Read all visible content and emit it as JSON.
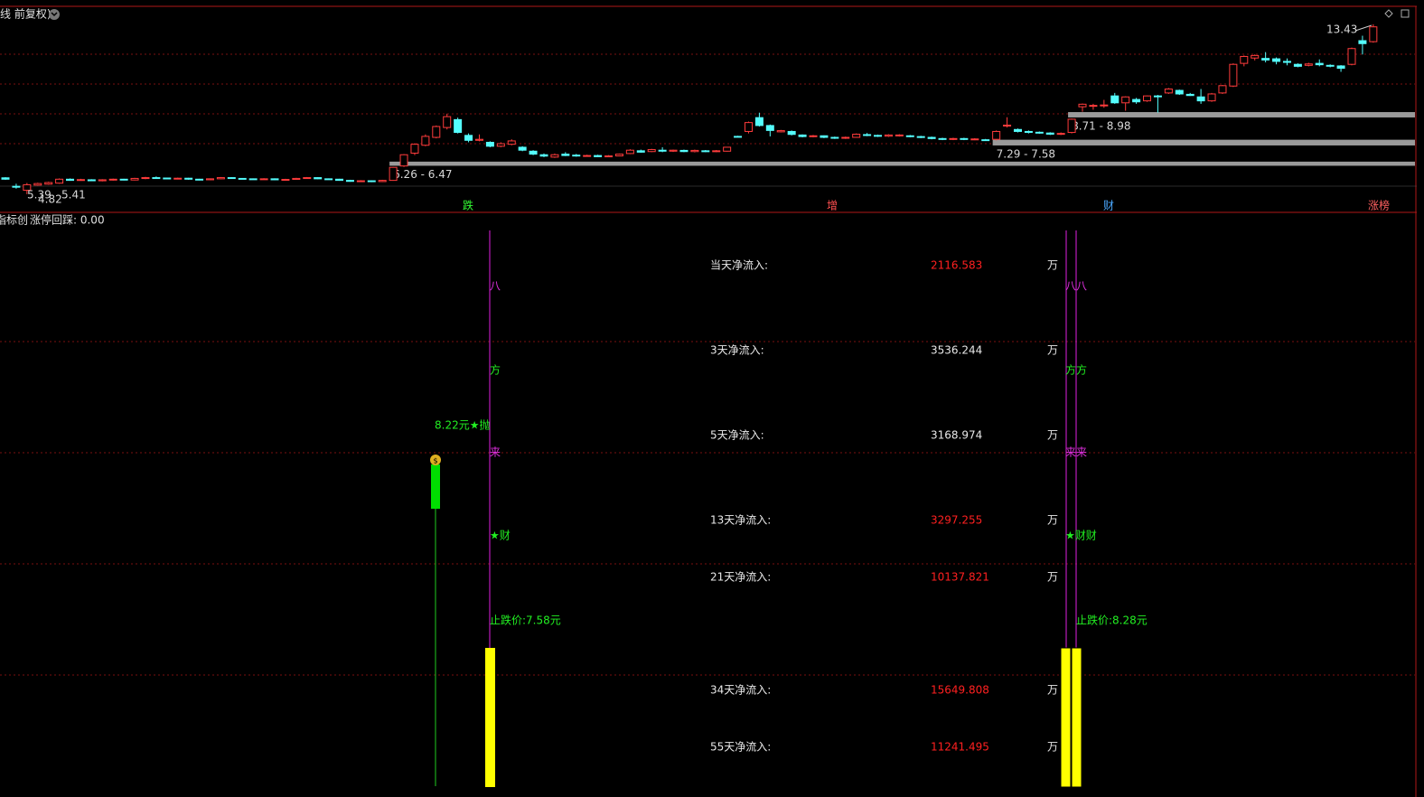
{
  "header": {
    "title": "线 前复权)"
  },
  "kline": {
    "ylim": [
      3.9,
      14.34
    ],
    "up_color": "#ff3c3c",
    "down_color": "#54fcfc",
    "candles": [
      [
        5.65,
        5.58,
        5.68,
        5.55
      ],
      [
        5.22,
        5.18,
        5.35,
        5.1
      ],
      [
        5.02,
        5.3,
        5.39,
        4.82
      ],
      [
        5.28,
        5.36,
        5.4,
        5.25
      ],
      [
        5.33,
        5.41,
        5.45,
        5.3
      ],
      [
        5.38,
        5.58,
        5.62,
        5.35
      ],
      [
        5.58,
        5.52,
        5.62,
        5.5
      ],
      [
        5.52,
        5.56,
        5.6,
        5.5
      ],
      [
        5.55,
        5.5,
        5.58,
        5.48
      ],
      [
        5.5,
        5.55,
        5.58,
        5.47
      ],
      [
        5.54,
        5.58,
        5.61,
        5.51
      ],
      [
        5.58,
        5.54,
        5.6,
        5.52
      ],
      [
        5.54,
        5.62,
        5.65,
        5.52
      ],
      [
        5.62,
        5.66,
        5.7,
        5.58
      ],
      [
        5.66,
        5.64,
        5.72,
        5.61
      ],
      [
        5.64,
        5.6,
        5.66,
        5.58
      ],
      [
        5.6,
        5.63,
        5.66,
        5.57
      ],
      [
        5.63,
        5.58,
        5.65,
        5.55
      ],
      [
        5.58,
        5.55,
        5.6,
        5.52
      ],
      [
        5.55,
        5.6,
        5.62,
        5.53
      ],
      [
        5.6,
        5.66,
        5.69,
        5.58
      ],
      [
        5.66,
        5.62,
        5.68,
        5.6
      ],
      [
        5.62,
        5.6,
        5.64,
        5.57
      ],
      [
        5.6,
        5.58,
        5.62,
        5.56
      ],
      [
        5.58,
        5.6,
        5.63,
        5.55
      ],
      [
        5.6,
        5.55,
        5.62,
        5.53
      ],
      [
        5.55,
        5.57,
        5.6,
        5.52
      ],
      [
        5.57,
        5.62,
        5.65,
        5.55
      ],
      [
        5.62,
        5.66,
        5.69,
        5.6
      ],
      [
        5.66,
        5.6,
        5.68,
        5.58
      ],
      [
        5.6,
        5.58,
        5.62,
        5.55
      ],
      [
        5.58,
        5.52,
        5.6,
        5.5
      ],
      [
        5.52,
        5.47,
        5.55,
        5.45
      ],
      [
        5.47,
        5.5,
        5.53,
        5.44
      ],
      [
        5.5,
        5.46,
        5.52,
        5.43
      ],
      [
        5.46,
        5.52,
        5.55,
        5.44
      ],
      [
        5.52,
        6.18,
        6.2,
        5.5
      ],
      [
        6.25,
        6.82,
        6.85,
        6.2
      ],
      [
        6.9,
        7.35,
        7.4,
        6.8
      ],
      [
        7.3,
        7.75,
        7.85,
        7.25
      ],
      [
        7.7,
        8.25,
        8.3,
        7.65
      ],
      [
        8.2,
        8.75,
        8.9,
        8.1
      ],
      [
        8.6,
        7.95,
        8.7,
        7.9
      ],
      [
        7.8,
        7.55,
        7.9,
        7.45
      ],
      [
        7.55,
        7.6,
        7.85,
        7.5
      ],
      [
        7.45,
        7.25,
        7.5,
        7.2
      ],
      [
        7.25,
        7.38,
        7.45,
        7.2
      ],
      [
        7.35,
        7.52,
        7.6,
        7.3
      ],
      [
        7.2,
        7.05,
        7.25,
        7.0
      ],
      [
        7.0,
        6.85,
        7.05,
        6.8
      ],
      [
        6.82,
        6.75,
        6.88,
        6.7
      ],
      [
        6.7,
        6.82,
        6.88,
        6.66
      ],
      [
        6.85,
        6.78,
        6.95,
        6.75
      ],
      [
        6.8,
        6.76,
        6.86,
        6.72
      ],
      [
        6.76,
        6.78,
        6.82,
        6.72
      ],
      [
        6.78,
        6.72,
        6.82,
        6.7
      ],
      [
        6.72,
        6.76,
        6.8,
        6.7
      ],
      [
        6.76,
        6.85,
        6.88,
        6.74
      ],
      [
        6.88,
        7.05,
        7.1,
        6.85
      ],
      [
        7.02,
        6.95,
        7.08,
        6.92
      ],
      [
        6.98,
        7.08,
        7.12,
        6.95
      ],
      [
        7.05,
        7.0,
        7.2,
        6.95
      ],
      [
        7.0,
        7.05,
        7.08,
        6.96
      ],
      [
        7.04,
        6.98,
        7.08,
        6.95
      ],
      [
        6.98,
        7.04,
        7.08,
        6.94
      ],
      [
        7.02,
        6.98,
        7.06,
        6.95
      ],
      [
        6.98,
        7.02,
        7.06,
        6.95
      ],
      [
        7.0,
        7.2,
        7.22,
        6.98
      ],
      [
        7.75,
        7.72,
        7.78,
        7.7
      ],
      [
        8.0,
        8.45,
        8.5,
        7.9
      ],
      [
        8.7,
        8.3,
        8.95,
        8.25
      ],
      [
        8.3,
        8.05,
        8.35,
        7.75
      ],
      [
        7.98,
        8.04,
        8.08,
        7.95
      ],
      [
        8.0,
        7.85,
        8.05,
        7.8
      ],
      [
        7.82,
        7.74,
        7.85,
        7.7
      ],
      [
        7.74,
        7.78,
        7.82,
        7.7
      ],
      [
        7.78,
        7.7,
        7.8,
        7.66
      ],
      [
        7.7,
        7.66,
        7.74,
        7.62
      ],
      [
        7.66,
        7.7,
        7.74,
        7.62
      ],
      [
        7.7,
        7.86,
        7.9,
        7.68
      ],
      [
        7.84,
        7.8,
        7.92,
        7.76
      ],
      [
        7.8,
        7.76,
        7.84,
        7.72
      ],
      [
        7.76,
        7.82,
        7.86,
        7.72
      ],
      [
        7.78,
        7.82,
        7.86,
        7.74
      ],
      [
        7.78,
        7.74,
        7.82,
        7.7
      ],
      [
        7.74,
        7.7,
        7.78,
        7.66
      ],
      [
        7.7,
        7.64,
        7.74,
        7.6
      ],
      [
        7.64,
        7.6,
        7.68,
        7.56
      ],
      [
        7.6,
        7.64,
        7.68,
        7.56
      ],
      [
        7.64,
        7.6,
        7.68,
        7.56
      ],
      [
        7.6,
        7.62,
        7.66,
        7.56
      ],
      [
        7.58,
        7.56,
        7.62,
        7.52
      ],
      [
        7.6,
        8.0,
        8.05,
        7.55
      ],
      [
        8.3,
        8.32,
        8.72,
        8.2
      ],
      [
        8.1,
        8.0,
        8.15,
        7.95
      ],
      [
        8.0,
        7.95,
        8.05,
        7.9
      ],
      [
        7.96,
        7.92,
        8.0,
        7.88
      ],
      [
        7.92,
        7.86,
        7.96,
        7.82
      ],
      [
        7.86,
        7.9,
        7.95,
        7.82
      ],
      [
        7.95,
        8.62,
        8.65,
        7.9
      ],
      [
        9.25,
        9.38,
        9.42,
        9.0
      ],
      [
        9.28,
        9.32,
        9.4,
        9.1
      ],
      [
        9.3,
        9.34,
        9.6,
        9.2
      ],
      [
        9.8,
        9.45,
        9.95,
        9.4
      ],
      [
        9.45,
        9.75,
        9.78,
        9.05
      ],
      [
        9.62,
        9.5,
        9.7,
        9.4
      ],
      [
        9.55,
        9.8,
        9.82,
        9.5
      ],
      [
        9.8,
        9.78,
        9.85,
        8.95
      ],
      [
        9.95,
        10.15,
        10.2,
        9.9
      ],
      [
        10.08,
        9.9,
        10.12,
        9.85
      ],
      [
        9.88,
        9.82,
        9.95,
        9.8
      ],
      [
        9.75,
        9.55,
        10.15,
        9.4
      ],
      [
        9.55,
        9.9,
        9.95,
        9.5
      ],
      [
        9.95,
        10.32,
        10.35,
        9.9
      ],
      [
        10.3,
        11.4,
        11.45,
        10.25
      ],
      [
        11.45,
        11.8,
        11.85,
        11.3
      ],
      [
        11.72,
        11.85,
        11.9,
        11.6
      ],
      [
        11.7,
        11.62,
        12.02,
        11.5
      ],
      [
        11.68,
        11.55,
        11.75,
        11.4
      ],
      [
        11.55,
        11.5,
        11.7,
        11.35
      ],
      [
        11.4,
        11.3,
        11.45,
        11.25
      ],
      [
        11.35,
        11.42,
        11.48,
        11.3
      ],
      [
        11.45,
        11.38,
        11.65,
        11.3
      ],
      [
        11.35,
        11.32,
        11.4,
        11.25
      ],
      [
        11.32,
        11.2,
        11.36,
        11.02
      ],
      [
        11.4,
        12.2,
        12.25,
        11.35
      ],
      [
        12.6,
        12.45,
        12.85,
        11.9
      ],
      [
        12.55,
        13.3,
        13.43,
        12.5
      ]
    ],
    "zones": [
      {
        "label": "6.26 - 6.47",
        "low": 6.26,
        "high": 6.47,
        "from": 36
      },
      {
        "label": "7.29 - 7.58",
        "low": 7.29,
        "high": 7.58,
        "from": 92
      },
      {
        "label": "8.71 - 8.98",
        "low": 8.71,
        "high": 8.98,
        "from": 99
      }
    ],
    "price_labels": [
      "13.43",
      "5.39",
      "5.41",
      "4.82"
    ],
    "signals": [
      {
        "text": "跌",
        "color": "#33ff33"
      },
      {
        "text": "增",
        "color": "#ff5050"
      },
      {
        "text": "财",
        "color": "#4aa8ff"
      },
      {
        "text": "涨榜",
        "color": "#ff6060"
      }
    ]
  },
  "indicator": {
    "name": "指标创",
    "status": "涨停回踩: 0.00",
    "sell_label": "8.22元★抛",
    "left_column": [
      "八",
      "方",
      "来",
      "★财",
      "止跌价:7.58元"
    ],
    "right_column": [
      "八八",
      "方方",
      "来来",
      "★财财"
    ],
    "right_stop": "止跌价:8.28元",
    "inflows": [
      {
        "label": "当天净流入:",
        "value": 2116.583,
        "unit": "万",
        "color": "#ff2020"
      },
      {
        "label": "3天净流入:",
        "value": 3536.244,
        "unit": "万",
        "color": "#e8e8e8"
      },
      {
        "label": "5天净流入:",
        "value": 3168.974,
        "unit": "万",
        "color": "#e8e8e8"
      },
      {
        "label": "13天净流入:",
        "value": 3297.255,
        "unit": "万",
        "color": "#ff2020"
      },
      {
        "label": "21天净流入:",
        "value": 10137.821,
        "unit": "万",
        "color": "#ff2020"
      },
      {
        "label": "34天净流入:",
        "value": 15649.808,
        "unit": "万",
        "color": "#ff2020"
      },
      {
        "label": "55天净流入:",
        "value": 11241.495,
        "unit": "万",
        "color": "#ff2020"
      }
    ]
  }
}
